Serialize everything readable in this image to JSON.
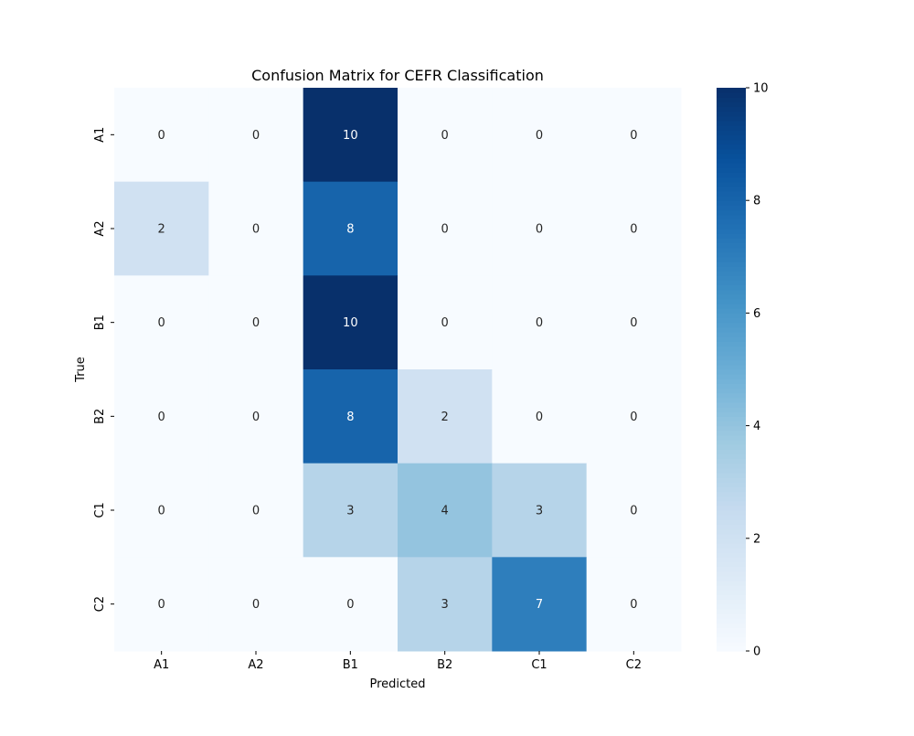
{
  "chart_data": {
    "type": "heatmap",
    "title": "Confusion Matrix for CEFR Classification",
    "xlabel": "Predicted",
    "ylabel": "True",
    "x_categories": [
      "A1",
      "A2",
      "B1",
      "B2",
      "C1",
      "C2"
    ],
    "y_categories": [
      "A1",
      "A2",
      "B1",
      "B2",
      "C1",
      "C2"
    ],
    "values": [
      [
        0,
        0,
        10,
        0,
        0,
        0
      ],
      [
        2,
        0,
        8,
        0,
        0,
        0
      ],
      [
        0,
        0,
        10,
        0,
        0,
        0
      ],
      [
        0,
        0,
        8,
        2,
        0,
        0
      ],
      [
        0,
        0,
        3,
        4,
        3,
        0
      ],
      [
        0,
        0,
        0,
        3,
        7,
        0
      ]
    ],
    "annotated": true,
    "colormap": "Blues",
    "colorbar": {
      "range": [
        0,
        10
      ],
      "ticks": [
        0,
        2,
        4,
        6,
        8,
        10
      ],
      "placement": "right"
    },
    "grid": false
  }
}
